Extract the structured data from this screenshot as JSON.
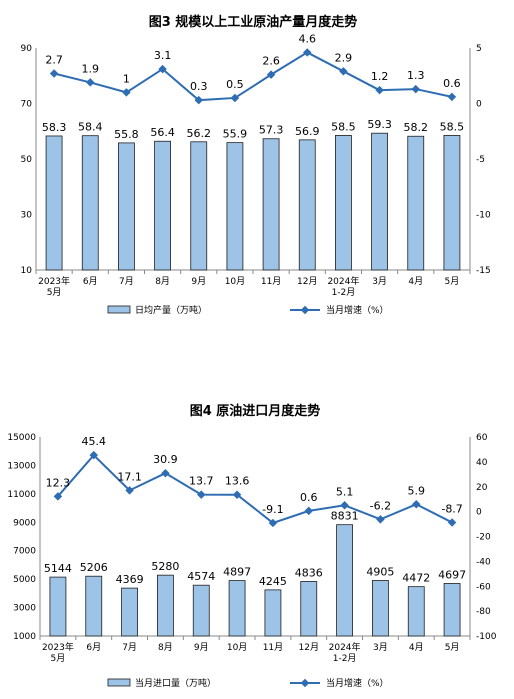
{
  "chart_data": [
    {
      "type": "bar",
      "title": "图3  规模以上工业原油产量月度走势",
      "categories": [
        "2023年\n5月",
        "6月",
        "7月",
        "8月",
        "9月",
        "10月",
        "11月",
        "12月",
        "2024年\n1-2月",
        "3月",
        "4月",
        "5月"
      ],
      "series": [
        {
          "name": "日均产量（万吨）",
          "type": "bar",
          "axis": "left",
          "values": [
            58.3,
            58.4,
            55.8,
            56.4,
            56.2,
            55.9,
            57.3,
            56.9,
            58.5,
            59.3,
            58.2,
            58.5
          ]
        },
        {
          "name": "当月增速（%）",
          "type": "line",
          "axis": "right",
          "values": [
            2.7,
            1.9,
            1.0,
            3.1,
            0.3,
            0.5,
            2.6,
            4.6,
            2.9,
            1.2,
            1.3,
            0.6
          ]
        }
      ],
      "ylim_left": [
        10,
        90
      ],
      "yticks_left": [
        10,
        30,
        50,
        70,
        90
      ],
      "ylim_right": [
        -15,
        5
      ],
      "yticks_right": [
        -15,
        -10,
        -5,
        0,
        5
      ],
      "legend_position": "bottom"
    },
    {
      "type": "bar",
      "title": "图4  原油进口月度走势",
      "categories": [
        "2023年\n5月",
        "6月",
        "7月",
        "8月",
        "9月",
        "10月",
        "11月",
        "12月",
        "2024年\n1-2月",
        "3月",
        "4月",
        "5月"
      ],
      "series": [
        {
          "name": "当月进口量（万吨）",
          "type": "bar",
          "axis": "left",
          "values": [
            5144,
            5206,
            4369,
            5280,
            4574,
            4897,
            4245,
            4836,
            8831,
            4905,
            4472,
            4697
          ]
        },
        {
          "name": "当月增速（%）",
          "type": "line",
          "axis": "right",
          "values": [
            12.3,
            45.4,
            17.1,
            30.9,
            13.7,
            13.6,
            -9.1,
            0.6,
            5.1,
            -6.2,
            5.9,
            -8.7
          ]
        }
      ],
      "ylim_left": [
        1000,
        15000
      ],
      "yticks_left": [
        1000,
        3000,
        5000,
        7000,
        9000,
        11000,
        13000,
        15000
      ],
      "ylim_right": [
        -100,
        60
      ],
      "yticks_right": [
        -100,
        -80,
        -60,
        -40,
        -20,
        0,
        20,
        40,
        60
      ],
      "legend_position": "bottom"
    }
  ],
  "colors": {
    "bar_fill": "#9dc3e6",
    "bar_stroke": "#1f1f1f",
    "line": "#2e6db4"
  }
}
